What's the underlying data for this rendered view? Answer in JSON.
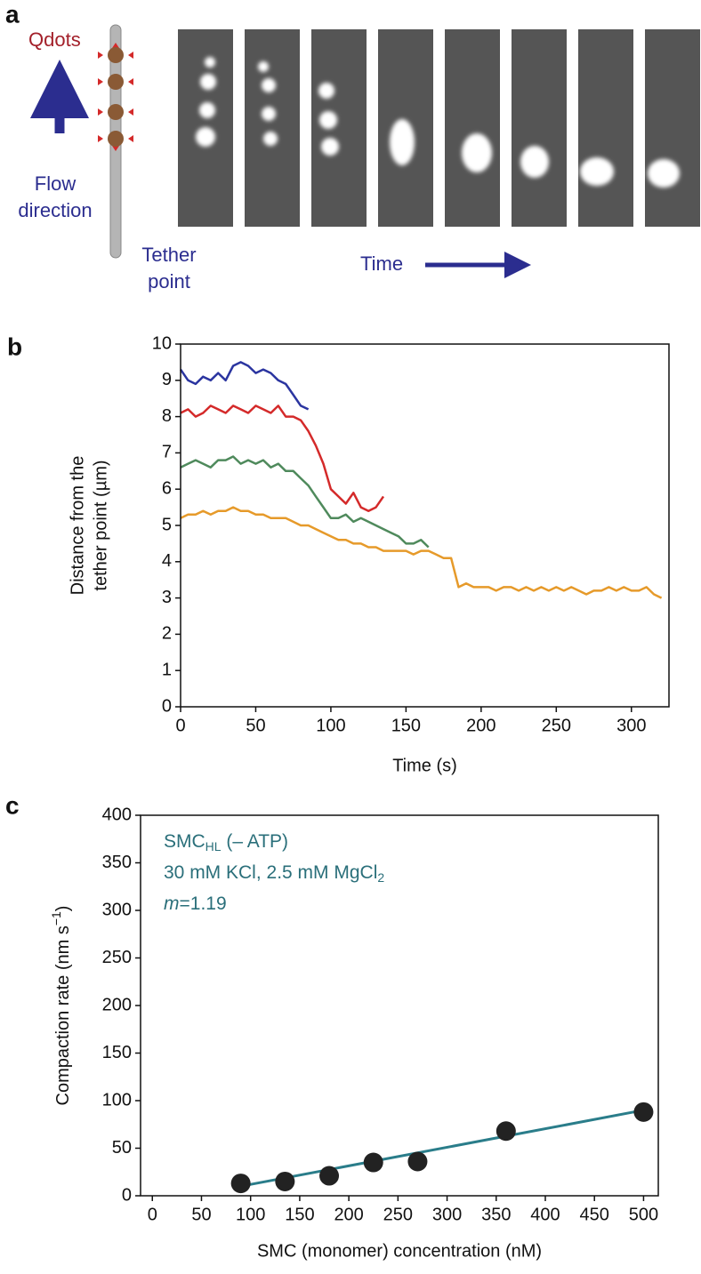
{
  "figure_a": {
    "panel_label": "a",
    "qdots": "Qdots",
    "flow": [
      "Flow",
      "direction"
    ],
    "tether": [
      "Tether",
      "point"
    ],
    "time": "Time"
  },
  "chart_data": [
    {
      "type": "line",
      "panel_label": "b",
      "xlabel": "Time (s)",
      "ylabel": [
        "Distance from the",
        "tether point (µm)"
      ],
      "x": [
        0,
        5,
        10,
        15,
        20,
        25,
        30,
        35,
        40,
        45,
        50,
        55,
        60,
        65,
        70,
        75,
        80,
        85,
        90,
        95,
        100,
        105,
        110,
        115,
        120,
        125,
        130,
        135,
        140,
        145,
        150,
        155,
        160,
        165,
        170,
        175,
        180,
        185,
        190,
        195,
        200,
        205,
        210,
        215,
        220,
        225,
        230,
        235,
        240,
        245,
        250,
        255,
        260,
        265,
        270,
        275,
        280,
        285,
        290,
        295,
        300,
        305,
        310,
        315,
        320
      ],
      "series": [
        {
          "color": "#2b35a0",
          "values": [
            9.3,
            9.0,
            8.9,
            9.1,
            9.0,
            9.2,
            9.0,
            9.4,
            9.5,
            9.4,
            9.2,
            9.3,
            9.2,
            9.0,
            8.9,
            8.6,
            8.3,
            8.2,
            null,
            null,
            null,
            null,
            null,
            null,
            null,
            null,
            null,
            null,
            null,
            null,
            null,
            null,
            null,
            null,
            null,
            null,
            null,
            null,
            null,
            null,
            null,
            null,
            null,
            null,
            null,
            null,
            null,
            null,
            null,
            null,
            null,
            null,
            null,
            null,
            null,
            null,
            null,
            null,
            null,
            null,
            null,
            null,
            null,
            null,
            null
          ]
        },
        {
          "color": "#d42a2a",
          "values": [
            8.1,
            8.2,
            8.0,
            8.1,
            8.3,
            8.2,
            8.1,
            8.3,
            8.2,
            8.1,
            8.3,
            8.2,
            8.1,
            8.3,
            8.0,
            8.0,
            7.9,
            7.6,
            7.2,
            6.7,
            6.0,
            5.8,
            5.6,
            5.9,
            5.5,
            5.4,
            5.5,
            5.8,
            null,
            null,
            null,
            null,
            null,
            null,
            null,
            null,
            null,
            null,
            null,
            null,
            null,
            null,
            null,
            null,
            null,
            null,
            null,
            null,
            null,
            null,
            null,
            null,
            null,
            null,
            null,
            null,
            null,
            null,
            null,
            null,
            null,
            null,
            null,
            null,
            null
          ]
        },
        {
          "color": "#4f8a5c",
          "values": [
            6.6,
            6.7,
            6.8,
            6.7,
            6.6,
            6.8,
            6.8,
            6.9,
            6.7,
            6.8,
            6.7,
            6.8,
            6.6,
            6.7,
            6.5,
            6.5,
            6.3,
            6.1,
            5.8,
            5.5,
            5.2,
            5.2,
            5.3,
            5.1,
            5.2,
            5.1,
            5.0,
            4.9,
            4.8,
            4.7,
            4.5,
            4.5,
            4.6,
            4.4,
            null,
            null,
            null,
            null,
            null,
            null,
            null,
            null,
            null,
            null,
            null,
            null,
            null,
            null,
            null,
            null,
            null,
            null,
            null,
            null,
            null,
            null,
            null,
            null,
            null,
            null,
            null,
            null,
            null,
            null,
            null
          ]
        },
        {
          "color": "#e69a2a",
          "values": [
            5.2,
            5.3,
            5.3,
            5.4,
            5.3,
            5.4,
            5.4,
            5.5,
            5.4,
            5.4,
            5.3,
            5.3,
            5.2,
            5.2,
            5.2,
            5.1,
            5.0,
            5.0,
            4.9,
            4.8,
            4.7,
            4.6,
            4.6,
            4.5,
            4.5,
            4.4,
            4.4,
            4.3,
            4.3,
            4.3,
            4.3,
            4.2,
            4.3,
            4.3,
            4.2,
            4.1,
            4.1,
            3.3,
            3.4,
            3.3,
            3.3,
            3.3,
            3.2,
            3.3,
            3.3,
            3.2,
            3.3,
            3.2,
            3.3,
            3.2,
            3.3,
            3.2,
            3.3,
            3.2,
            3.1,
            3.2,
            3.2,
            3.3,
            3.2,
            3.3,
            3.2,
            3.2,
            3.3,
            3.1,
            3.0
          ]
        }
      ],
      "xlim": [
        0,
        325
      ],
      "ylim": [
        0,
        10
      ],
      "xticks": [
        0,
        50,
        100,
        150,
        200,
        250,
        300
      ],
      "yticks": [
        0,
        1,
        2,
        3,
        4,
        5,
        6,
        7,
        8,
        9,
        10
      ]
    },
    {
      "type": "scatter",
      "panel_label": "c",
      "xlabel": "SMC (monomer) concentration (nM)",
      "ylabel": {
        "main": "Compaction rate (nm s",
        "sup": "−1",
        "end": ")"
      },
      "x": [
        90,
        135,
        180,
        225,
        270,
        360,
        500
      ],
      "values": [
        13,
        15,
        21,
        35,
        36,
        68,
        88
      ],
      "color": "#222222",
      "fit": {
        "x": [
          90,
          500
        ],
        "values": [
          10,
          90
        ],
        "color": "#2a7d8a"
      },
      "annotations": [
        {
          "text": "SMC",
          "sub": "HL",
          "after": " (– ATP)"
        },
        {
          "text": "30 mM KCl, 2.5 mM MgCl",
          "sub": "2"
        },
        {
          "text": "m",
          "after": "=1.19"
        }
      ],
      "xlim": [
        -12,
        515
      ],
      "ylim": [
        0,
        400
      ],
      "xticks": [
        0,
        50,
        100,
        150,
        200,
        250,
        300,
        350,
        400,
        450,
        500
      ],
      "yticks": [
        0,
        50,
        100,
        150,
        200,
        250,
        300,
        350,
        400
      ]
    }
  ]
}
